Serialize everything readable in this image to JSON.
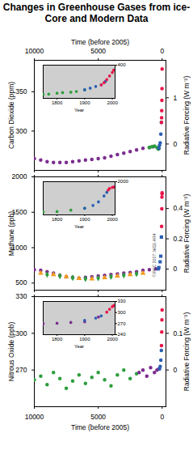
{
  "chart_data": [
    {
      "type": "scatter",
      "title": "Changes in Greenhouse Gases from ice-Core and Modern Data",
      "xlabel": "Time (before 2005)",
      "ylabel": "Carbon Dioxide (ppm)",
      "y2label": "Radiative Forcing (W m⁻²)",
      "xlim": [
        10000,
        -300
      ],
      "xticks": [
        10000,
        5000,
        0
      ],
      "ylim": [
        250,
        390
      ],
      "yticks": [
        300,
        350
      ],
      "y2lim": [
        -0.57,
        1.81
      ],
      "y2ticks": [
        0,
        1
      ],
      "series": [
        {
          "color": "#7b2d8e",
          "marker": "circle",
          "x": [
            10000,
            9500,
            9000,
            8500,
            8000,
            7500,
            7000,
            6500,
            6000,
            5500,
            5000,
            4500,
            4000,
            3500,
            3000,
            2500,
            2000,
            1500,
            1000,
            700
          ],
          "values": [
            265,
            263,
            261,
            260,
            260,
            260,
            261,
            262,
            263,
            264,
            265,
            266,
            268,
            270,
            272,
            274,
            276,
            278,
            279,
            280
          ]
        },
        {
          "color": "#2e9e3e",
          "marker": "circle",
          "x": [
            1000,
            800,
            600,
            400,
            300,
            250
          ],
          "values": [
            279,
            280,
            281,
            279,
            277,
            278
          ]
        },
        {
          "color": "#2b5fb4",
          "marker": "circle",
          "x": [
            250,
            200,
            150,
            100,
            60
          ],
          "values": [
            278,
            282,
            285,
            296,
            311
          ]
        },
        {
          "color": "#e8174a",
          "marker": "circle",
          "x": [
            50,
            40,
            30,
            20,
            10,
            0
          ],
          "values": [
            311,
            317,
            326,
            339,
            354,
            379
          ]
        }
      ],
      "inset": {
        "xlabel": "Year",
        "xlim": [
          1750,
          2010
        ],
        "xticks": [
          1800,
          1900,
          2000
        ],
        "ylim": [
          260,
          400
        ],
        "yticks": [
          400
        ],
        "series": [
          {
            "color": "#2e9e3e",
            "marker": "circle",
            "x": [
              1750,
              1770,
              1800,
              1820,
              1850,
              1870,
              1900
            ],
            "values": [
              277,
              278,
              282,
              284,
              286,
              289,
              296
            ]
          },
          {
            "color": "#2b5fb4",
            "marker": "circle",
            "x": [
              1900,
              1920,
              1940,
              1960,
              1975
            ],
            "values": [
              296,
              303,
              310,
              317,
              331
            ]
          },
          {
            "color": "#e8174a",
            "marker": "circle",
            "x": [
              1960,
              1970,
              1980,
              1990,
              2000,
              2005
            ],
            "values": [
              317,
              326,
              339,
              354,
              369,
              379
            ]
          }
        ]
      }
    },
    {
      "type": "scatter",
      "xlabel": "Time (before 2005)",
      "ylabel": "Methane (ppb)",
      "y2label": "Radiative Forcing (W m⁻²)",
      "annotation": "©IPCC 2007: WG1-AR4",
      "xlim": [
        10000,
        -300
      ],
      "xticks": [
        10000,
        5000,
        0
      ],
      "ylim": [
        400,
        2000
      ],
      "yticks": [
        500,
        1000,
        1500,
        2000
      ],
      "y2lim": [
        -0.14,
        0.61
      ],
      "y2ticks": [
        0,
        0.2,
        0.4
      ],
      "series": [
        {
          "color": "#7b2d8e",
          "marker": "circle",
          "x": [
            10000,
            9500,
            9000,
            8500,
            8000,
            7500,
            7000,
            6500,
            6000,
            5500,
            5000,
            4500,
            4000,
            3500,
            3000,
            2500,
            2000,
            1500,
            1000,
            500
          ],
          "values": [
            690,
            680,
            660,
            640,
            610,
            590,
            580,
            570,
            580,
            590,
            600,
            610,
            620,
            630,
            640,
            650,
            660,
            680,
            690,
            700
          ]
        },
        {
          "color": "#f39c1f",
          "marker": "triangle",
          "x": [
            9500,
            8500,
            7500,
            6500,
            5500,
            4500,
            3500,
            2500,
            1500
          ],
          "values": [
            640,
            620,
            590,
            565,
            560,
            575,
            600,
            620,
            640
          ]
        },
        {
          "color": "#2e9e3e",
          "marker": "diamond",
          "x": [
            9000,
            8000,
            7000,
            6000,
            5000,
            4000,
            3000,
            2000
          ],
          "values": [
            620,
            600,
            575,
            560,
            570,
            590,
            610,
            630
          ]
        },
        {
          "color": "#2b5fb4",
          "marker": "square",
          "x": [
            300,
            255,
            155,
            105,
            55
          ],
          "values": [
            700,
            720,
            800,
            880,
            1150
          ]
        },
        {
          "color": "#e8174a",
          "marker": "circle",
          "x": [
            40,
            25,
            15,
            5,
            0
          ],
          "values": [
            1300,
            1550,
            1714,
            1760,
            1774
          ]
        }
      ],
      "inset": {
        "xlabel": "Year",
        "xlim": [
          1750,
          2010
        ],
        "xticks": [
          1800,
          1900,
          2000
        ],
        "ylim": [
          600,
          2000
        ],
        "yticks": [
          2000
        ],
        "series": [
          {
            "color": "#2e9e3e",
            "marker": "circle",
            "x": [
              1750,
              1800,
              1850,
              1900
            ],
            "values": [
              720,
              740,
              800,
              880
            ]
          },
          {
            "color": "#2b5fb4",
            "marker": "circle",
            "x": [
              1900,
              1930,
              1950,
              1970,
              1980
            ],
            "values": [
              880,
              1000,
              1150,
              1400,
              1550
            ]
          },
          {
            "color": "#e8174a",
            "marker": "circle",
            "x": [
              1985,
              1990,
              2000,
              2005
            ],
            "values": [
              1650,
              1714,
              1760,
              1774
            ]
          }
        ]
      }
    },
    {
      "type": "scatter",
      "xlabel": "Time (before 2005)",
      "ylabel": "Nitrous Oxide (ppb)",
      "y2label": "Radiative Forcing (W m⁻²)",
      "xlim": [
        10000,
        -300
      ],
      "xticks": [
        10000,
        5000,
        0
      ],
      "ylim": [
        240,
        330
      ],
      "yticks": [
        270,
        300,
        330
      ],
      "y2lim": [
        -0.1,
        0.2
      ],
      "y2ticks": [
        0,
        0.1
      ],
      "series": [
        {
          "color": "#2e9e3e",
          "marker": "circle",
          "x": [
            10000,
            9500,
            9000,
            8500,
            8000,
            7500,
            7000,
            6500,
            6000,
            5500,
            5000,
            4500,
            4000,
            3500,
            3000,
            2500,
            2000
          ],
          "values": [
            262,
            265,
            258,
            268,
            263,
            255,
            261,
            266,
            259,
            264,
            268,
            262,
            257,
            266,
            270,
            263,
            267
          ]
        },
        {
          "color": "#7b2d8e",
          "marker": "circle",
          "x": [
            1800,
            1500,
            1200,
            900,
            600,
            400,
            250
          ],
          "values": [
            268,
            270,
            265,
            272,
            268,
            270,
            271
          ]
        },
        {
          "color": "#2b5fb4",
          "marker": "circle",
          "x": [
            200,
            150,
            100,
            60
          ],
          "values": [
            271,
            273,
            278,
            286
          ]
        },
        {
          "color": "#e8174a",
          "marker": "circle",
          "x": [
            50,
            30,
            15,
            0
          ],
          "values": [
            290,
            301,
            311,
            319
          ]
        }
      ],
      "inset": {
        "xlabel": "Year",
        "xlim": [
          1750,
          2010
        ],
        "xticks": [
          1800,
          1900,
          2000
        ],
        "ylim": [
          240,
          330
        ],
        "yticks": [
          240,
          270,
          300,
          330
        ],
        "series": [
          {
            "color": "#7b2d8e",
            "marker": "circle",
            "x": [
              1750,
              1800,
              1850,
              1900,
              1950
            ],
            "values": [
              270,
              271,
              273,
              275,
              288
            ]
          },
          {
            "color": "#2b5fb4",
            "marker": "circle",
            "x": [
              1900,
              1940,
              1960
            ],
            "values": [
              279,
              285,
              291
            ]
          },
          {
            "color": "#e8174a",
            "marker": "circle",
            "x": [
              1980,
              1990,
              2000,
              2005
            ],
            "values": [
              301,
              309,
              316,
              319
            ]
          }
        ]
      }
    }
  ]
}
